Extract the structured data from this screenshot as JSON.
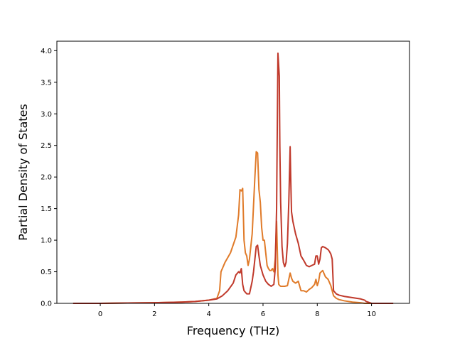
{
  "chart_data": {
    "type": "line",
    "title": "",
    "xlabel": "Frequency (THz)",
    "ylabel": "Partial Density of States",
    "xlim": [
      -1.6,
      11.4
    ],
    "ylim": [
      0,
      4.15
    ],
    "xticks": [
      0,
      2,
      4,
      6,
      8,
      10
    ],
    "yticks": [
      0.0,
      0.5,
      1.0,
      1.5,
      2.0,
      2.5,
      3.0,
      3.5,
      4.0
    ],
    "ytick_labels": [
      "0.0",
      "0.5",
      "1.0",
      "1.5",
      "2.0",
      "2.5",
      "3.0",
      "3.5",
      "4.0"
    ],
    "grid": false,
    "series": [
      {
        "color": "#e07b2a",
        "x": [
          -1.0,
          0.0,
          1.0,
          2.0,
          3.0,
          3.5,
          4.0,
          4.3,
          4.4,
          4.45,
          4.5,
          4.6,
          4.8,
          5.0,
          5.1,
          5.15,
          5.2,
          5.25,
          5.3,
          5.35,
          5.4,
          5.45,
          5.5,
          5.55,
          5.6,
          5.7,
          5.75,
          5.8,
          5.85,
          5.9,
          5.95,
          6.0,
          6.05,
          6.1,
          6.15,
          6.2,
          6.25,
          6.3,
          6.35,
          6.4,
          6.45,
          6.5,
          6.55,
          6.58,
          6.62,
          6.65,
          6.7,
          6.8,
          6.9,
          7.0,
          7.05,
          7.1,
          7.2,
          7.3,
          7.4,
          7.5,
          7.6,
          7.7,
          7.8,
          7.9,
          7.95,
          8.0,
          8.05,
          8.1,
          8.2,
          8.3,
          8.4,
          8.5,
          8.6,
          8.7,
          8.8,
          9.0,
          9.3,
          9.6,
          9.75,
          9.8,
          10.0,
          10.5,
          10.8
        ],
        "y": [
          0.0,
          0.0,
          0.005,
          0.01,
          0.02,
          0.03,
          0.05,
          0.08,
          0.2,
          0.5,
          0.55,
          0.65,
          0.8,
          1.05,
          1.4,
          1.8,
          1.78,
          1.82,
          1.0,
          0.8,
          0.75,
          0.6,
          0.7,
          0.9,
          1.1,
          2.0,
          2.4,
          2.38,
          1.8,
          1.6,
          1.2,
          1.0,
          1.0,
          0.8,
          0.6,
          0.55,
          0.52,
          0.52,
          0.55,
          0.5,
          0.7,
          1.3,
          0.45,
          0.3,
          0.28,
          0.27,
          0.27,
          0.27,
          0.28,
          0.48,
          0.4,
          0.35,
          0.32,
          0.35,
          0.2,
          0.2,
          0.18,
          0.22,
          0.25,
          0.3,
          0.38,
          0.28,
          0.35,
          0.48,
          0.52,
          0.42,
          0.38,
          0.28,
          0.12,
          0.08,
          0.06,
          0.04,
          0.02,
          0.01,
          0.0,
          0.0,
          0.0,
          0.0,
          0.0
        ]
      },
      {
        "color": "#c0392b",
        "x": [
          -1.0,
          0.0,
          1.0,
          2.0,
          3.0,
          3.5,
          4.0,
          4.3,
          4.5,
          4.7,
          4.9,
          5.0,
          5.1,
          5.15,
          5.2,
          5.25,
          5.3,
          5.4,
          5.5,
          5.6,
          5.65,
          5.7,
          5.75,
          5.8,
          5.85,
          5.9,
          6.0,
          6.1,
          6.2,
          6.3,
          6.4,
          6.45,
          6.5,
          6.55,
          6.6,
          6.62,
          6.65,
          6.7,
          6.75,
          6.8,
          6.85,
          6.9,
          6.95,
          7.0,
          7.02,
          7.05,
          7.1,
          7.2,
          7.3,
          7.4,
          7.5,
          7.6,
          7.7,
          7.8,
          7.9,
          7.95,
          8.0,
          8.05,
          8.1,
          8.15,
          8.2,
          8.3,
          8.4,
          8.45,
          8.5,
          8.55,
          8.6,
          8.7,
          8.8,
          9.0,
          9.3,
          9.6,
          9.75,
          9.8,
          10.0,
          10.5,
          10.8
        ],
        "y": [
          0.0,
          0.0,
          0.005,
          0.01,
          0.02,
          0.03,
          0.05,
          0.07,
          0.12,
          0.2,
          0.32,
          0.45,
          0.5,
          0.48,
          0.55,
          0.3,
          0.2,
          0.15,
          0.15,
          0.35,
          0.5,
          0.7,
          0.9,
          0.92,
          0.75,
          0.6,
          0.45,
          0.35,
          0.3,
          0.27,
          0.3,
          0.55,
          1.5,
          3.96,
          3.6,
          2.5,
          1.6,
          0.9,
          0.65,
          0.58,
          0.65,
          0.95,
          1.6,
          2.48,
          2.0,
          1.45,
          1.3,
          1.1,
          0.95,
          0.75,
          0.68,
          0.6,
          0.58,
          0.6,
          0.62,
          0.75,
          0.75,
          0.62,
          0.7,
          0.88,
          0.9,
          0.88,
          0.85,
          0.82,
          0.78,
          0.7,
          0.2,
          0.15,
          0.13,
          0.11,
          0.09,
          0.07,
          0.05,
          0.03,
          0.0,
          0.0,
          0.0
        ]
      }
    ]
  }
}
